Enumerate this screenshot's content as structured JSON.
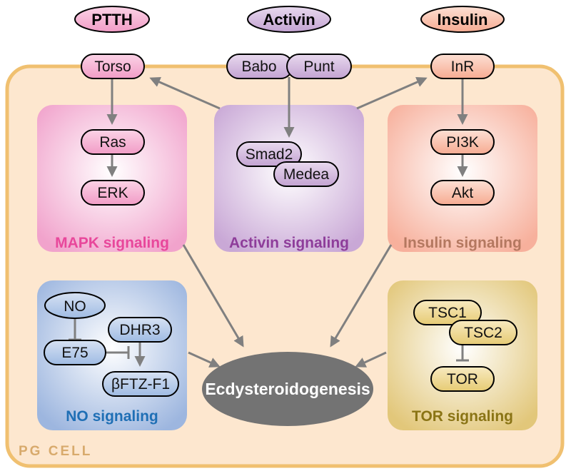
{
  "ligands": {
    "ptth": "PTTH",
    "activin": "Activin",
    "insulin": "Insulin"
  },
  "receptors": {
    "torso": "Torso",
    "babo": "Babo",
    "punt": "Punt",
    "inr": "InR"
  },
  "modules": {
    "mapk": {
      "label": "MAPK signaling",
      "nodes": [
        "Ras",
        "ERK"
      ]
    },
    "activin": {
      "label": "Activin signaling",
      "nodes": [
        "Smad2",
        "Medea"
      ]
    },
    "insulin": {
      "label": "Insulin signaling",
      "nodes": [
        "PI3K",
        "Akt"
      ]
    },
    "no": {
      "label": "NO signaling",
      "nodes": [
        "NO",
        "DHR3",
        "E75",
        "βFTZ-F1"
      ]
    },
    "tor": {
      "label": "TOR signaling",
      "nodes": [
        "TSC1",
        "TSC2",
        "TOR"
      ]
    }
  },
  "center": {
    "label": "Ecdysteroidogenesis"
  },
  "cell": {
    "label": "PG CELL"
  },
  "colors": {
    "cell_fill": "#fde7cf",
    "cell_border": "#f0c070",
    "mapk": "#e8479b",
    "activin": "#8e3d9a",
    "insulin": "#b47860",
    "no": "#1f6fb5",
    "tor": "#8a7415",
    "center": "#737373",
    "arrow": "#808080"
  }
}
